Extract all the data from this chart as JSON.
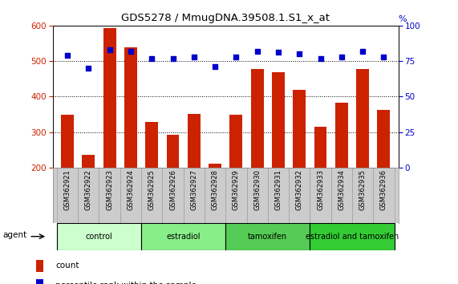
{
  "title": "GDS5278 / MmugDNA.39508.1.S1_x_at",
  "samples": [
    "GSM362921",
    "GSM362922",
    "GSM362923",
    "GSM362924",
    "GSM362925",
    "GSM362926",
    "GSM362927",
    "GSM362928",
    "GSM362929",
    "GSM362930",
    "GSM362931",
    "GSM362932",
    "GSM362933",
    "GSM362934",
    "GSM362935",
    "GSM362936"
  ],
  "counts": [
    348,
    235,
    592,
    538,
    328,
    292,
    350,
    210,
    348,
    478,
    468,
    420,
    315,
    382,
    478,
    362
  ],
  "percentile_ranks": [
    79,
    70,
    83,
    82,
    77,
    77,
    78,
    71,
    78,
    82,
    81,
    80,
    77,
    78,
    82,
    78
  ],
  "groups": [
    {
      "label": "control",
      "start": 0,
      "end": 4,
      "color": "#ccffcc"
    },
    {
      "label": "estradiol",
      "start": 4,
      "end": 8,
      "color": "#99ee99"
    },
    {
      "label": "tamoxifen",
      "start": 8,
      "end": 12,
      "color": "#66dd66"
    },
    {
      "label": "estradiol and tamoxifen",
      "start": 12,
      "end": 16,
      "color": "#44cc44"
    }
  ],
  "ylim_left": [
    200,
    600
  ],
  "ylim_right": [
    0,
    100
  ],
  "yticks_left": [
    200,
    300,
    400,
    500,
    600
  ],
  "yticks_right": [
    0,
    25,
    50,
    75,
    100
  ],
  "bar_color": "#cc2200",
  "dot_color": "#0000cc",
  "bar_width": 0.6,
  "grid_color": "#000000",
  "bg_color": "#ffffff",
  "tick_area_color": "#cccccc",
  "group_colors": [
    "#ccffcc",
    "#88ee88",
    "#55cc55",
    "#33bb33"
  ],
  "legend_count_color": "#cc2200",
  "legend_dot_color": "#0000cc",
  "left_axis_color": "#cc2200",
  "right_axis_color": "#0000cc"
}
